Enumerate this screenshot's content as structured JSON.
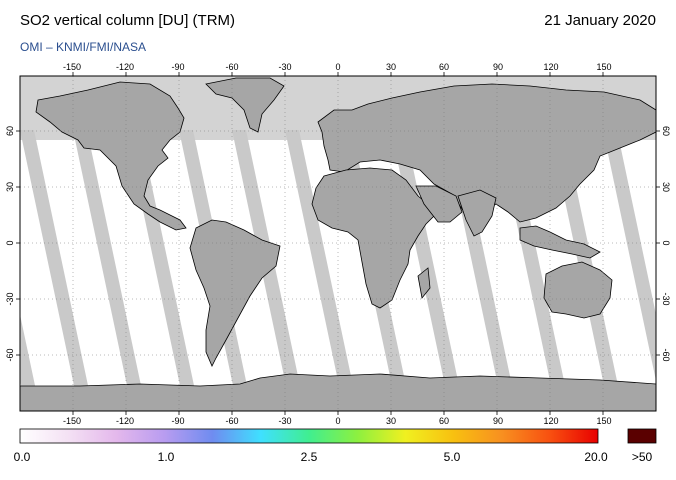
{
  "header": {
    "title": "SO2 vertical column [DU] (TRM)",
    "date": "21 January 2020",
    "subtitle": "OMI  –  KNMI/FMI/NASA"
  },
  "map": {
    "lon_ticks": [
      "-150",
      "-120",
      "-90",
      "-60",
      "-30",
      "0",
      "30",
      "60",
      "90",
      "120",
      "150"
    ],
    "lat_ticks": [
      "60",
      "30",
      "0",
      "-30",
      "-60"
    ],
    "colors": {
      "no_data": "#d3d3d3",
      "land": "#a6a6a6",
      "ocean_measured": "#ffffff",
      "swath_gap": "#c9c9c9",
      "coastline": "#000000"
    }
  },
  "colorbar": {
    "labels": [
      "0.0",
      "1.0",
      "2.5",
      "5.0",
      "20.0",
      ">50"
    ],
    "gradient": [
      "#ffffff",
      "#f4e1f4",
      "#e4b8ec",
      "#b89cf0",
      "#6f8cf0",
      "#3fe0ff",
      "#40ee90",
      "#8cf040",
      "#f0f020",
      "#f8c010",
      "#f89020",
      "#f85010",
      "#e80000"
    ],
    "overflow_color": "#5a0000"
  }
}
